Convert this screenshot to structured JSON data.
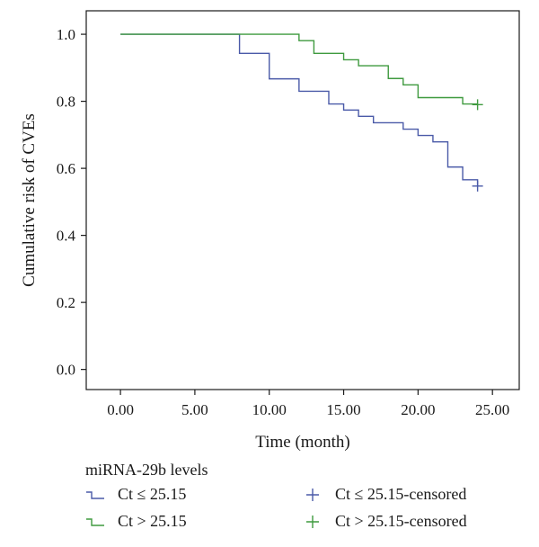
{
  "chart_data": {
    "type": "line",
    "step": true,
    "xlabel": "Time (month)",
    "ylabel": "Cumulative risk of CVEs",
    "xlim": [
      -2.3,
      26.8
    ],
    "ylim": [
      -0.06,
      1.07
    ],
    "xticks": [
      0,
      5,
      10,
      15,
      20,
      25
    ],
    "xtick_labels": [
      "0.00",
      "5.00",
      "10.00",
      "15.00",
      "20.00",
      "25.00"
    ],
    "yticks": [
      0,
      0.2,
      0.4,
      0.6,
      0.8,
      1.0
    ],
    "ytick_labels": [
      "0.0",
      "0.2",
      "0.4",
      "0.6",
      "0.8",
      "1.0"
    ],
    "grid": false,
    "legend_title": "miRNA-29b levels",
    "legend_position": "bottom",
    "series": [
      {
        "name": "Ct ≤ 25.15",
        "color": "#4a5aa8",
        "x": [
          0,
          8,
          10,
          12,
          14,
          15,
          16,
          17,
          19,
          20,
          21,
          22,
          23,
          24
        ],
        "y": [
          1.0,
          0.943,
          0.867,
          0.83,
          0.792,
          0.774,
          0.755,
          0.736,
          0.717,
          0.698,
          0.679,
          0.604,
          0.566,
          0.547
        ],
        "censored_name": "Ct ≤ 25.15-censored",
        "censored_x": [
          24
        ],
        "censored_y": [
          0.547
        ]
      },
      {
        "name": "Ct > 25.15",
        "color": "#3f9a3f",
        "x": [
          0,
          12,
          13,
          15,
          16,
          18,
          19,
          20,
          23,
          24
        ],
        "y": [
          1.0,
          0.981,
          0.943,
          0.924,
          0.906,
          0.868,
          0.849,
          0.811,
          0.792,
          0.792
        ],
        "censored_name": "Ct > 25.15-censored",
        "censored_x": [
          24
        ],
        "censored_y": [
          0.79
        ]
      }
    ]
  }
}
